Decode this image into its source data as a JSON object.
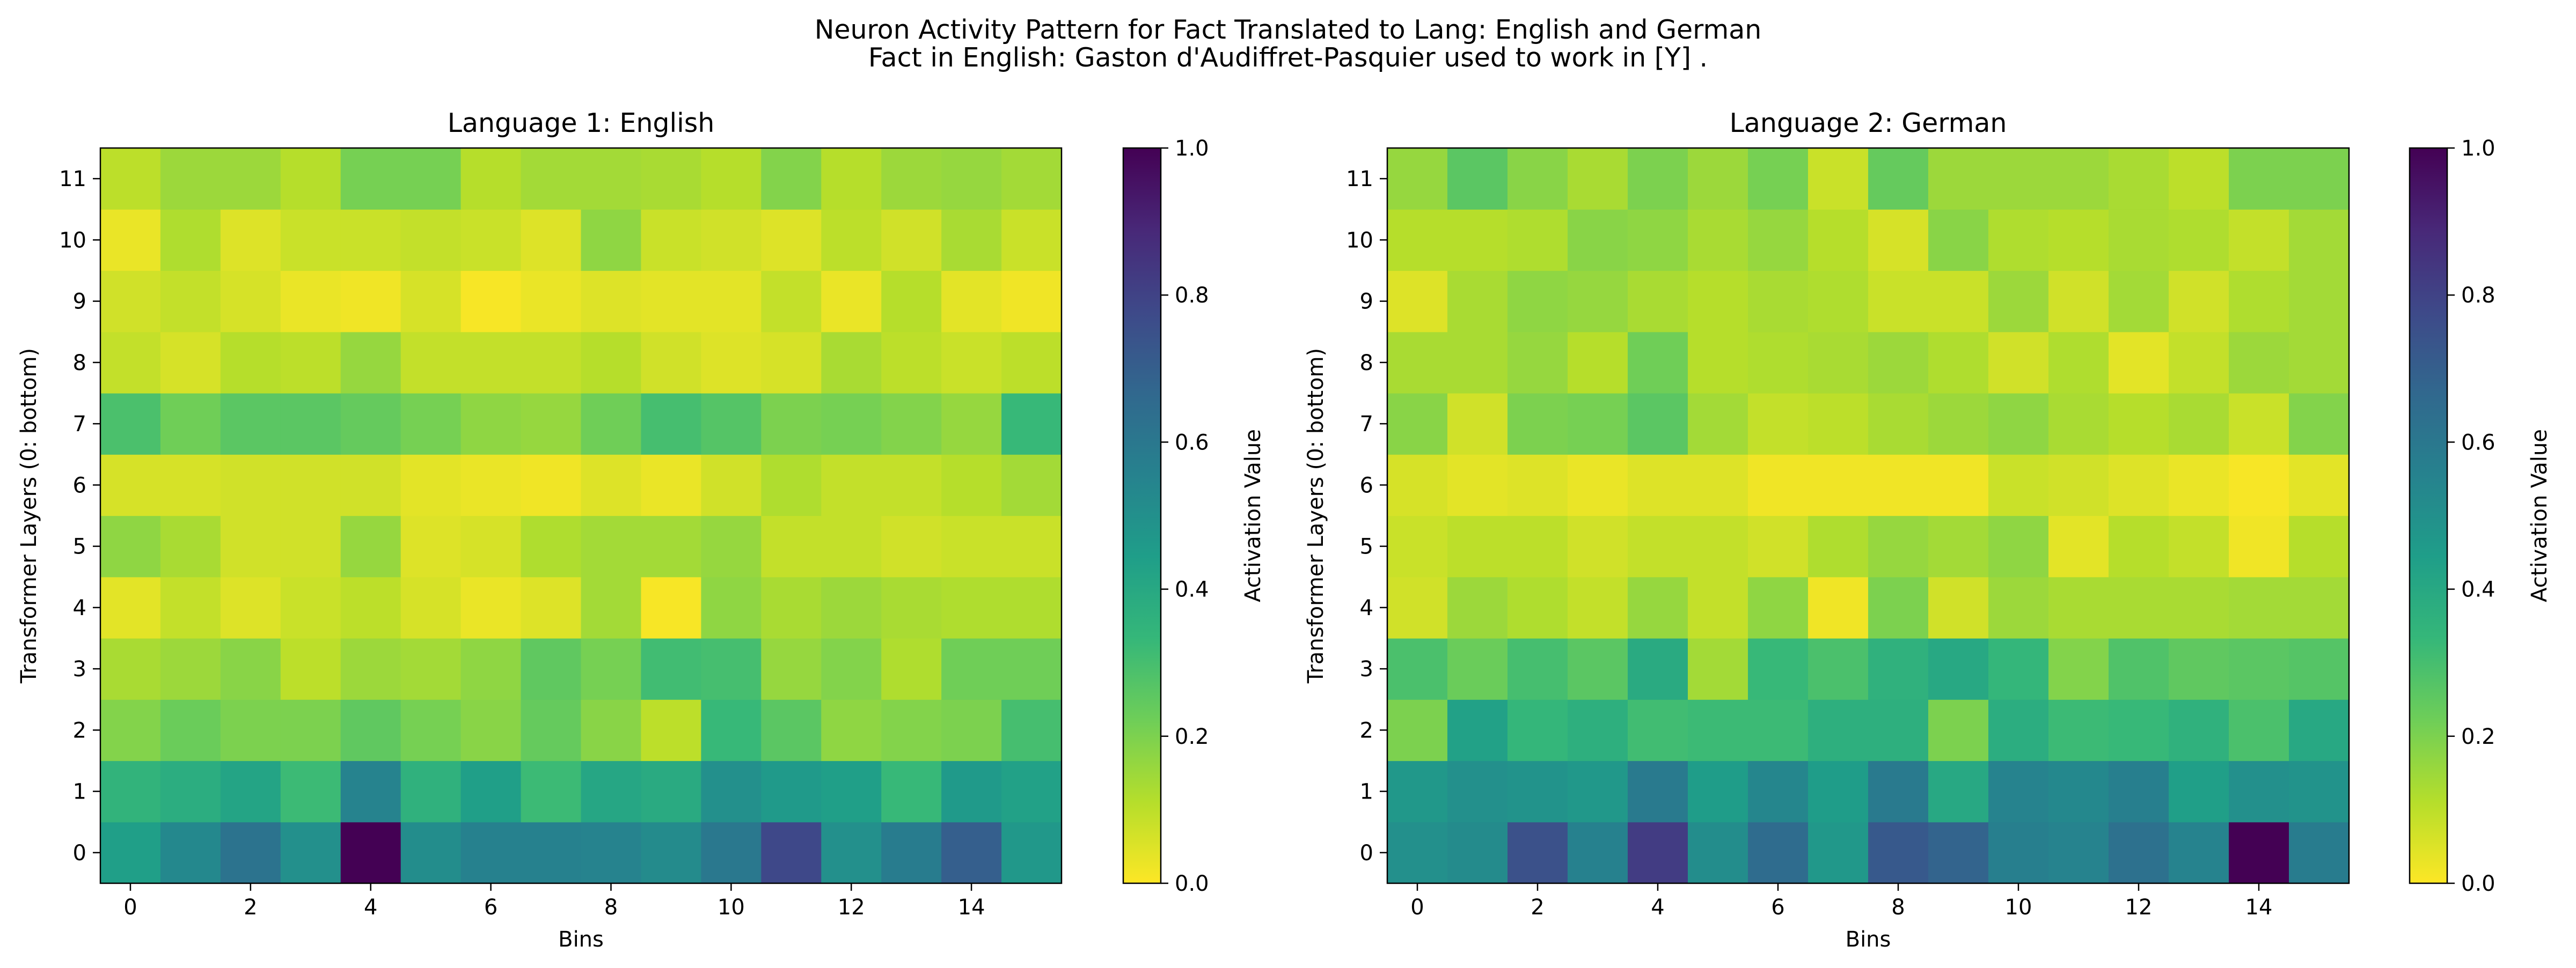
{
  "chart_data": {
    "type": "heatmap",
    "title": "Neuron Activity Pattern for Fact Translated to Lang: English and German",
    "subtitle": "Fact in English: Gaston d'Audiffret-Pasquier used to work in [Y] .",
    "colormap": "viridis_r",
    "panels": [
      {
        "title": "Language 1: English",
        "xlabel": "Bins",
        "ylabel": "Transformer Layers (0: bottom)",
        "x_ticks": [
          0,
          2,
          4,
          6,
          8,
          10,
          12,
          14
        ],
        "y_ticks": [
          0,
          1,
          2,
          3,
          4,
          5,
          6,
          7,
          8,
          9,
          10,
          11
        ],
        "colorbar_label": "Activation Value",
        "colorbar_ticks": [
          "0.0",
          "0.2",
          "0.4",
          "0.6",
          "0.8",
          "1.0"
        ],
        "vmin": 0.0,
        "vmax": 1.0,
        "values": [
          [
            0.44,
            0.53,
            0.62,
            0.5,
            1.0,
            0.51,
            0.56,
            0.56,
            0.55,
            0.52,
            0.6,
            0.78,
            0.5,
            0.58,
            0.7,
            0.47
          ],
          [
            0.35,
            0.38,
            0.42,
            0.32,
            0.55,
            0.36,
            0.44,
            0.32,
            0.41,
            0.39,
            0.5,
            0.46,
            0.44,
            0.33,
            0.46,
            0.43
          ],
          [
            0.19,
            0.23,
            0.2,
            0.2,
            0.25,
            0.21,
            0.18,
            0.24,
            0.18,
            0.1,
            0.33,
            0.26,
            0.17,
            0.19,
            0.2,
            0.3
          ],
          [
            0.13,
            0.15,
            0.18,
            0.1,
            0.15,
            0.14,
            0.17,
            0.25,
            0.21,
            0.31,
            0.3,
            0.16,
            0.19,
            0.12,
            0.22,
            0.22
          ],
          [
            0.04,
            0.09,
            0.05,
            0.08,
            0.1,
            0.06,
            0.03,
            0.05,
            0.14,
            0.01,
            0.17,
            0.13,
            0.15,
            0.13,
            0.12,
            0.12
          ],
          [
            0.17,
            0.13,
            0.07,
            0.07,
            0.16,
            0.05,
            0.06,
            0.12,
            0.14,
            0.14,
            0.16,
            0.09,
            0.09,
            0.07,
            0.08,
            0.08
          ],
          [
            0.06,
            0.06,
            0.07,
            0.07,
            0.07,
            0.04,
            0.03,
            0.02,
            0.05,
            0.03,
            0.07,
            0.12,
            0.09,
            0.09,
            0.11,
            0.14
          ],
          [
            0.29,
            0.22,
            0.26,
            0.26,
            0.24,
            0.21,
            0.17,
            0.16,
            0.22,
            0.3,
            0.27,
            0.2,
            0.21,
            0.19,
            0.16,
            0.33
          ],
          [
            0.09,
            0.06,
            0.11,
            0.1,
            0.16,
            0.09,
            0.09,
            0.09,
            0.11,
            0.07,
            0.05,
            0.06,
            0.13,
            0.1,
            0.08,
            0.1
          ],
          [
            0.07,
            0.09,
            0.06,
            0.03,
            0.02,
            0.06,
            0.01,
            0.03,
            0.05,
            0.04,
            0.04,
            0.09,
            0.03,
            0.11,
            0.04,
            0.02
          ],
          [
            0.03,
            0.12,
            0.05,
            0.08,
            0.08,
            0.09,
            0.08,
            0.05,
            0.17,
            0.08,
            0.07,
            0.05,
            0.1,
            0.07,
            0.13,
            0.08
          ],
          [
            0.1,
            0.15,
            0.15,
            0.11,
            0.21,
            0.21,
            0.11,
            0.14,
            0.14,
            0.13,
            0.11,
            0.19,
            0.11,
            0.15,
            0.16,
            0.14
          ]
        ]
      },
      {
        "title": "Language 2: German",
        "xlabel": "Bins",
        "ylabel": "Transformer Layers (0: bottom)",
        "x_ticks": [
          0,
          2,
          4,
          6,
          8,
          10,
          12,
          14
        ],
        "y_ticks": [
          0,
          1,
          2,
          3,
          4,
          5,
          6,
          7,
          8,
          9,
          10,
          11
        ],
        "colorbar_label": "Activation Value",
        "colorbar_ticks": [
          "0.0",
          "0.2",
          "0.4",
          "0.6",
          "0.8",
          "1.0"
        ],
        "vmin": 0.0,
        "vmax": 1.0,
        "values": [
          [
            0.5,
            0.52,
            0.75,
            0.56,
            0.82,
            0.51,
            0.65,
            0.47,
            0.72,
            0.68,
            0.57,
            0.55,
            0.63,
            0.55,
            1.0,
            0.58
          ],
          [
            0.47,
            0.5,
            0.49,
            0.47,
            0.59,
            0.45,
            0.54,
            0.45,
            0.59,
            0.4,
            0.55,
            0.53,
            0.57,
            0.44,
            0.5,
            0.49
          ],
          [
            0.2,
            0.43,
            0.34,
            0.37,
            0.31,
            0.32,
            0.32,
            0.37,
            0.37,
            0.2,
            0.38,
            0.32,
            0.33,
            0.36,
            0.29,
            0.4
          ],
          [
            0.29,
            0.23,
            0.3,
            0.26,
            0.39,
            0.14,
            0.33,
            0.29,
            0.36,
            0.4,
            0.34,
            0.19,
            0.28,
            0.25,
            0.26,
            0.27
          ],
          [
            0.07,
            0.15,
            0.12,
            0.09,
            0.16,
            0.09,
            0.17,
            0.02,
            0.2,
            0.07,
            0.15,
            0.13,
            0.13,
            0.13,
            0.14,
            0.14
          ],
          [
            0.08,
            0.1,
            0.1,
            0.07,
            0.09,
            0.09,
            0.07,
            0.12,
            0.16,
            0.14,
            0.17,
            0.04,
            0.11,
            0.09,
            0.02,
            0.11
          ],
          [
            0.06,
            0.04,
            0.05,
            0.03,
            0.05,
            0.05,
            0.02,
            0.02,
            0.02,
            0.02,
            0.08,
            0.07,
            0.05,
            0.03,
            0.01,
            0.04
          ],
          [
            0.18,
            0.07,
            0.2,
            0.21,
            0.26,
            0.14,
            0.09,
            0.1,
            0.13,
            0.15,
            0.17,
            0.13,
            0.11,
            0.13,
            0.08,
            0.19
          ],
          [
            0.13,
            0.13,
            0.16,
            0.11,
            0.22,
            0.11,
            0.12,
            0.13,
            0.15,
            0.12,
            0.07,
            0.12,
            0.04,
            0.09,
            0.15,
            0.14
          ],
          [
            0.05,
            0.13,
            0.17,
            0.16,
            0.13,
            0.11,
            0.13,
            0.12,
            0.08,
            0.08,
            0.15,
            0.07,
            0.14,
            0.07,
            0.12,
            0.14
          ],
          [
            0.11,
            0.11,
            0.12,
            0.18,
            0.17,
            0.13,
            0.16,
            0.11,
            0.06,
            0.18,
            0.12,
            0.11,
            0.13,
            0.12,
            0.09,
            0.14
          ],
          [
            0.16,
            0.26,
            0.18,
            0.13,
            0.2,
            0.15,
            0.21,
            0.08,
            0.24,
            0.15,
            0.15,
            0.15,
            0.13,
            0.1,
            0.2,
            0.2
          ]
        ]
      }
    ]
  }
}
